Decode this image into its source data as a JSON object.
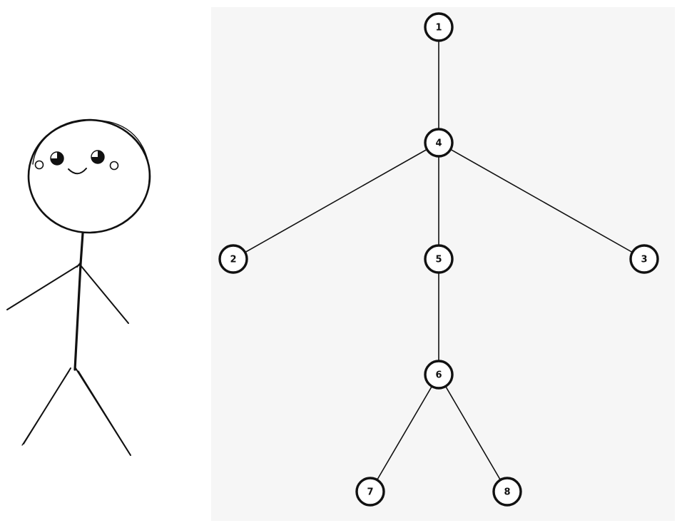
{
  "colors": {
    "background": "#ffffff",
    "panel": "#f6f6f6",
    "ink": "#111111",
    "node_fill": "#ffffff"
  },
  "stick_figure": {
    "name": "stick-figure-sketch",
    "features": [
      "head",
      "eyes",
      "cheeks",
      "smile",
      "body",
      "arms",
      "legs"
    ]
  },
  "graph": {
    "nodes": [
      {
        "id": "1",
        "label": "1"
      },
      {
        "id": "4",
        "label": "4"
      },
      {
        "id": "2",
        "label": "2"
      },
      {
        "id": "5",
        "label": "5"
      },
      {
        "id": "3",
        "label": "3"
      },
      {
        "id": "6",
        "label": "6"
      },
      {
        "id": "7",
        "label": "7"
      },
      {
        "id": "8",
        "label": "8"
      }
    ],
    "edges": [
      {
        "from": "1",
        "to": "4"
      },
      {
        "from": "4",
        "to": "2"
      },
      {
        "from": "4",
        "to": "5"
      },
      {
        "from": "4",
        "to": "3"
      },
      {
        "from": "5",
        "to": "6"
      },
      {
        "from": "6",
        "to": "7"
      },
      {
        "from": "6",
        "to": "8"
      }
    ]
  }
}
